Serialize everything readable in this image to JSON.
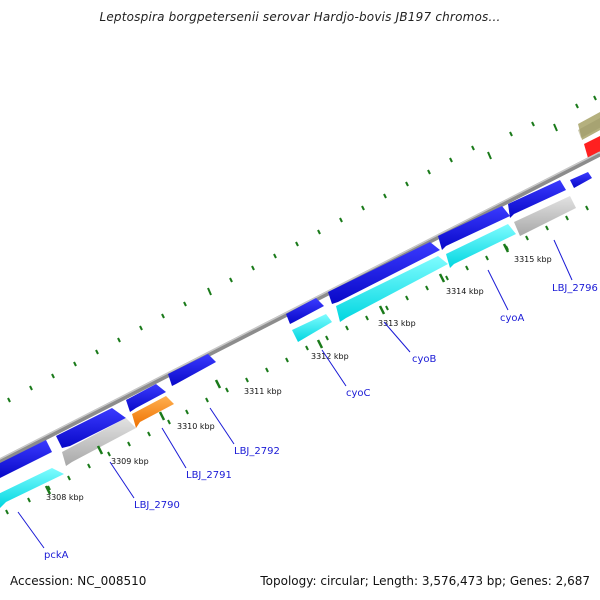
{
  "title": "Leptospira borgpetersenii serovar Hardjo-bovis JB197 chromos...",
  "footer": {
    "accession": "Accession: NC_008510",
    "summary": "Topology: circular; Length: 3,576,473 bp; Genes: 2,687"
  },
  "colors": {
    "forward_cds": "#1010e0",
    "reverse_cds": "#00e8ee",
    "pseudo": "#c4c4c4",
    "orange": "#ff8a10",
    "red": "#ff2020",
    "olive": "#b4b07e",
    "backbone": "#8c8c8c",
    "tick": "#1a7a1a",
    "label": "#1a1ad6"
  },
  "tick_labels": [
    "3308 kbp",
    "3309 kbp",
    "3310 kbp",
    "3311 kbp",
    "3312 kbp",
    "3313 kbp",
    "3314 kbp",
    "3315 kbp"
  ],
  "gene_labels": [
    "pckA",
    "LBJ_2790",
    "LBJ_2791",
    "LBJ_2792",
    "cyoC",
    "cyoB",
    "cyoA",
    "LBJ_2796"
  ]
}
